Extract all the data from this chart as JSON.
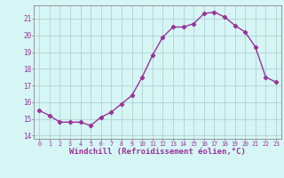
{
  "x": [
    0,
    1,
    2,
    3,
    4,
    5,
    6,
    7,
    8,
    9,
    10,
    11,
    12,
    13,
    14,
    15,
    16,
    17,
    18,
    19,
    20,
    21,
    22,
    23
  ],
  "y": [
    15.5,
    15.2,
    14.8,
    14.8,
    14.8,
    14.6,
    15.1,
    15.4,
    15.9,
    16.4,
    17.5,
    18.8,
    19.9,
    20.5,
    20.5,
    20.7,
    21.3,
    21.4,
    21.1,
    20.6,
    20.2,
    19.3,
    17.5,
    17.2
  ],
  "line_color": "#993399",
  "marker": "D",
  "markersize": 2.2,
  "linewidth": 1.0,
  "xlabel": "Windchill (Refroidissement éolien,°C)",
  "xlabel_fontsize": 6.5,
  "xlim": [
    -0.5,
    23.5
  ],
  "ylim": [
    13.8,
    21.8
  ],
  "yticks": [
    14,
    15,
    16,
    17,
    18,
    19,
    20,
    21
  ],
  "xticks": [
    0,
    1,
    2,
    3,
    4,
    5,
    6,
    7,
    8,
    9,
    10,
    11,
    12,
    13,
    14,
    15,
    16,
    17,
    18,
    19,
    20,
    21,
    22,
    23
  ],
  "bg_color": "#d6f5f5",
  "grid_color": "#aacccc",
  "tick_color": "#993399",
  "label_color": "#993399",
  "spine_color": "#888888"
}
